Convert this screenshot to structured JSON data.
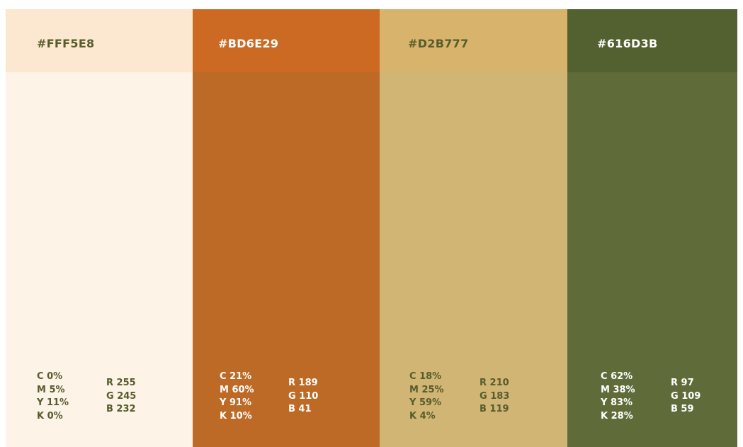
{
  "swatches": [
    {
      "hex": "#FFF5E8",
      "cmyk": [
        "C 0%",
        "M 5%",
        "Y 11%",
        "K 0%"
      ],
      "rgb": [
        "R 255",
        "G 245",
        "B 232"
      ]
    },
    {
      "hex": "#BD6E29",
      "cmyk": [
        "C 21%",
        "M 60%",
        "Y 91%",
        "K 10%"
      ],
      "rgb": [
        "R 189",
        "G 110",
        "B 41"
      ]
    },
    {
      "hex": "#D2B777",
      "cmyk": [
        "C 18%",
        "M 25%",
        "Y 59%",
        "K 4%"
      ],
      "rgb": [
        "R 210",
        "G 183",
        "B 119"
      ]
    },
    {
      "hex": "#616D3B",
      "cmyk": [
        "C 62%",
        "M 38%",
        "Y 83%",
        "K 28%"
      ],
      "rgb": [
        "R 97",
        "G 109",
        "B 59"
      ]
    }
  ]
}
